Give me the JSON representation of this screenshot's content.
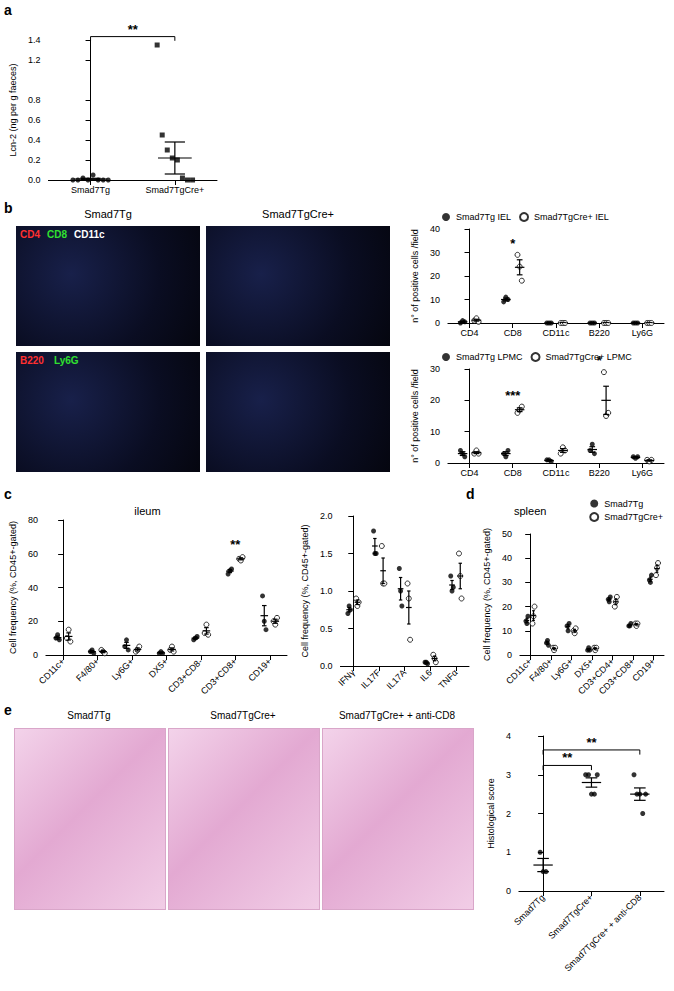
{
  "panels": [
    "a",
    "b",
    "c",
    "d",
    "e"
  ],
  "images": {
    "b": {
      "columns": [
        "Smad7Tg",
        "Smad7TgCre+"
      ],
      "rows": [
        [
          {
            "text": "CD4",
            "color": "#ff3030"
          },
          {
            "text": "CD8",
            "color": "#30e030"
          },
          {
            "text": "CD11c",
            "color": "#ffffff"
          }
        ],
        [
          {
            "text": "B220",
            "color": "#ff3030"
          },
          {
            "text": "Ly6G",
            "color": "#30e030"
          }
        ]
      ]
    },
    "e": {
      "columns": [
        "Smad7Tg",
        "Smad7TgCre+",
        "Smad7TgCre+ + anti-CD8"
      ]
    }
  },
  "chart_data": [
    {
      "type": "scatter",
      "ylabel": "Lcn-2 (ng per g faeces)",
      "categories": [
        "Smad7Tg",
        "Smad7TgCre+"
      ],
      "series": [
        {
          "name": "Smad7Tg",
          "color": "#000000",
          "marker": "circle",
          "values": [
            [
              0.0,
              0.0,
              0.02,
              0.0,
              0.05,
              0.0,
              0.0,
              0.0
            ],
            null
          ],
          "mean": [
            0.01,
            null
          ],
          "sem": [
            0.007,
            null
          ]
        },
        {
          "name": "Smad7TgCre+",
          "color": "#000000",
          "marker": "square",
          "values": [
            null,
            [
              1.35,
              0.45,
              0.3,
              0.22,
              0.2,
              0.02,
              0.0,
              0.0
            ]
          ],
          "mean": [
            null,
            0.22
          ],
          "sem": [
            null,
            0.16
          ]
        }
      ],
      "ylim": [
        0,
        1.4
      ],
      "yticks": [
        {
          "value": 0,
          "label": "0.0"
        },
        0.2,
        0.4,
        0.6,
        0.8,
        1.2,
        1.4
      ],
      "grid": false,
      "annotations": [
        {
          "text": "**",
          "between": [
            "Smad7Tg",
            "Smad7TgCre+"
          ]
        }
      ]
    },
    {
      "type": "scatter",
      "ylabel": "n° of positive cells /field",
      "categories": [
        "CD4",
        "CD8",
        "CD11c",
        "B220",
        "Ly6G"
      ],
      "series": [
        {
          "name": "Smad7Tg IEL",
          "color": "#000000",
          "marker": "circle",
          "values": [
            [
              0,
              1,
              0.5
            ],
            [
              9,
              11,
              10
            ],
            [
              0,
              0,
              0
            ],
            [
              0,
              0,
              0
            ],
            [
              0,
              0,
              0
            ]
          ],
          "mean": [
            0.5,
            10,
            0,
            0,
            0
          ],
          "sem": [
            0.3,
            0.6,
            0,
            0,
            0
          ]
        },
        {
          "name": "Smad7TgCre+ IEL",
          "color": "#000000",
          "marker": "open-circle",
          "values": [
            [
              1,
              2,
              0.5
            ],
            [
              29,
              24,
              18
            ],
            [
              0,
              0,
              0
            ],
            [
              0,
              0,
              0
            ],
            [
              0,
              0,
              0
            ]
          ],
          "mean": [
            1.2,
            23.7,
            0,
            0,
            0
          ],
          "sem": [
            0.4,
            3.2,
            0,
            0,
            0
          ]
        }
      ],
      "ylim": [
        0,
        40
      ],
      "yticks": [
        0,
        10,
        20,
        30,
        40
      ],
      "grid": false,
      "legend": "top-left",
      "annotations": [
        {
          "text": "*",
          "category": "CD8"
        }
      ]
    },
    {
      "type": "scatter",
      "ylabel": "n° of positive cells /field",
      "categories": [
        "CD4",
        "CD8",
        "CD11c",
        "B220",
        "Ly6G"
      ],
      "series": [
        {
          "name": "Smad7Tg LPMC",
          "color": "#000000",
          "marker": "circle",
          "values": [
            [
              4,
              3,
              2
            ],
            [
              3,
              2,
              4
            ],
            [
              1,
              1,
              0.5
            ],
            [
              4,
              6,
              3
            ],
            [
              2,
              1.5,
              2
            ]
          ],
          "mean": [
            3,
            3,
            0.8,
            4.3,
            1.8
          ],
          "sem": [
            0.6,
            0.6,
            0.2,
            0.9,
            0.2
          ]
        },
        {
          "name": "Smad7TgCre+ LPMC",
          "color": "#000000",
          "marker": "open-circle",
          "values": [
            [
              3,
              4,
              3
            ],
            [
              16,
              17,
              18
            ],
            [
              3,
              5,
              4
            ],
            [
              29,
              15,
              16
            ],
            [
              1,
              0.5,
              1
            ]
          ],
          "mean": [
            3.3,
            17,
            4,
            20,
            0.8
          ],
          "sem": [
            0.3,
            0.6,
            0.6,
            4.5,
            0.2
          ]
        }
      ],
      "ylim": [
        0,
        30
      ],
      "yticks": [
        0,
        10,
        20,
        30
      ],
      "grid": false,
      "legend": "top-left",
      "annotations": [
        {
          "text": "***",
          "category": "CD8"
        },
        {
          "text": "*",
          "category": "B220"
        }
      ]
    },
    {
      "type": "scatter",
      "title": "ileum",
      "ylabel": "Cell frequency (%, CD45+-gated)",
      "categories": [
        "CD11c+",
        "F4/80+",
        "Ly6G+",
        "DX5+",
        "CD3+CD8-",
        "CD3+CD8+",
        "CD19+"
      ],
      "series": [
        {
          "name": "Smad7Tg",
          "color": "#000000",
          "marker": "circle",
          "values": [
            [
              10,
              12,
              9
            ],
            [
              2,
              3,
              1
            ],
            [
              5,
              9,
              3
            ],
            [
              1,
              2,
              1
            ],
            [
              9,
              10,
              11
            ],
            [
              48,
              50,
              51
            ],
            [
              35,
              20,
              15
            ]
          ],
          "mean": [
            10.3,
            2,
            5.7,
            1.3,
            10,
            49.7,
            23.3
          ],
          "sem": [
            0.9,
            0.6,
            1.8,
            0.3,
            0.6,
            0.9,
            6
          ]
        },
        {
          "name": "Smad7TgCre+",
          "color": "#000000",
          "marker": "open-circle",
          "values": [
            [
              10,
              15,
              8
            ],
            [
              3,
              2,
              1
            ],
            [
              2,
              3,
              5
            ],
            [
              3,
              5,
              2
            ],
            [
              13,
              18,
              12
            ],
            [
              57,
              56,
              58
            ],
            [
              20,
              18,
              22
            ]
          ],
          "mean": [
            11,
            2,
            3.3,
            3.3,
            14.3,
            57,
            20
          ],
          "sem": [
            2.1,
            0.6,
            0.9,
            0.9,
            1.9,
            0.6,
            1.2
          ]
        }
      ],
      "ylim": [
        0,
        80
      ],
      "yticks": [
        0,
        20,
        40,
        60,
        80
      ],
      "grid": false,
      "annotations": [
        {
          "text": "**",
          "category": "CD3+CD8+"
        }
      ]
    },
    {
      "type": "scatter",
      "ylabel": "Cell frequency (%, CD45+-gated)",
      "categories": [
        "IFNγ",
        "IL17F",
        "IL17A",
        "IL6",
        "TNFα"
      ],
      "series": [
        {
          "name": "Smad7Tg",
          "color": "#000000",
          "marker": "circle",
          "values": [
            [
              0.7,
              0.8,
              0.75
            ],
            [
              1.8,
              1.5,
              1.5
            ],
            [
              1.3,
              1.0,
              0.8
            ],
            [
              0.05,
              0.05,
              0.03
            ],
            [
              1.2,
              1.0,
              1.05
            ]
          ],
          "mean": [
            0.75,
            1.6,
            1.03,
            0.04,
            1.08
          ],
          "sem": [
            0.03,
            0.1,
            0.15,
            0.01,
            0.06
          ]
        },
        {
          "name": "Smad7TgCre+",
          "color": "#000000",
          "marker": "open-circle",
          "values": [
            [
              0.9,
              0.8,
              0.85
            ],
            [
              1.6,
              1.1,
              1.1
            ],
            [
              1.1,
              0.9,
              0.35
            ],
            [
              0.15,
              0.1,
              0.05
            ],
            [
              1.5,
              1.2,
              0.9
            ]
          ],
          "mean": [
            0.85,
            1.27,
            0.78,
            0.1,
            1.2
          ],
          "sem": [
            0.03,
            0.17,
            0.22,
            0.03,
            0.17
          ]
        }
      ],
      "ylim": [
        0,
        2
      ],
      "yticks": [
        {
          "value": 0,
          "label": "0.0"
        },
        0.5,
        {
          "value": 1,
          "label": "1.0"
        },
        1.5,
        {
          "value": 2,
          "label": "2.0"
        }
      ],
      "grid": false
    },
    {
      "type": "scatter",
      "title": "spleen",
      "ylabel": "Cell frequency (%, CD45+-gated)",
      "categories": [
        "CD11c+",
        "F4/80+",
        "Ly6G+",
        "DX5+",
        "CD3+CD4+",
        "CD3+CD8+",
        "CD19+"
      ],
      "series": [
        {
          "name": "Smad7Tg",
          "color": "#000000",
          "marker": "circle",
          "values": [
            [
              14,
              13,
              16
            ],
            [
              5,
              6,
              4
            ],
            [
              12,
              10,
              13
            ],
            [
              2,
              3,
              2
            ],
            [
              23,
              22,
              24
            ],
            [
              12,
              12,
              13
            ],
            [
              31,
              30,
              33
            ]
          ],
          "mean": [
            14.3,
            5,
            11.7,
            2.3,
            23,
            12.3,
            31.3
          ],
          "sem": [
            0.9,
            0.6,
            0.9,
            0.3,
            0.6,
            0.3,
            0.9
          ]
        },
        {
          "name": "Smad7TgCre+",
          "color": "#000000",
          "marker": "open-circle",
          "values": [
            [
              13,
              16,
              20
            ],
            [
              3,
              2,
              3
            ],
            [
              10,
              9,
              11
            ],
            [
              3,
              2,
              3
            ],
            [
              20,
              22,
              24
            ],
            [
              13,
              12,
              13
            ],
            [
              33,
              36,
              38
            ]
          ],
          "mean": [
            16.3,
            2.7,
            10,
            2.7,
            22,
            12.7,
            35.7
          ],
          "sem": [
            2,
            0.3,
            0.6,
            0.3,
            1.2,
            0.3,
            1.5
          ]
        }
      ],
      "ylim": [
        0,
        50
      ],
      "yticks": [
        0,
        10,
        20,
        30,
        40,
        50
      ],
      "grid": false,
      "legend": "top-right"
    },
    {
      "type": "scatter",
      "ylabel": "Histological score",
      "categories": [
        "Smad7Tg",
        "Smad7TgCre+",
        "Smad7TgCre+ + anti-CD8"
      ],
      "series": [
        {
          "color": "#000000",
          "marker": "circle",
          "values": [
            [
              1.0,
              0.5,
              0.5
            ],
            [
              3,
              3,
              2.5,
              2.5,
              3
            ],
            [
              3,
              2.5,
              2.5,
              2,
              2.5
            ]
          ],
          "mean": [
            0.67,
            2.8,
            2.5
          ],
          "sem": [
            0.17,
            0.12,
            0.16
          ]
        }
      ],
      "ylim": [
        0,
        4
      ],
      "yticks": [
        0,
        1,
        2,
        3,
        4
      ],
      "grid": false,
      "annotations": [
        {
          "text": "**",
          "between": [
            "Smad7Tg",
            "Smad7TgCre+"
          ]
        },
        {
          "text": "**",
          "between": [
            "Smad7Tg",
            "Smad7TgCre+ + anti-CD8"
          ]
        }
      ]
    }
  ]
}
